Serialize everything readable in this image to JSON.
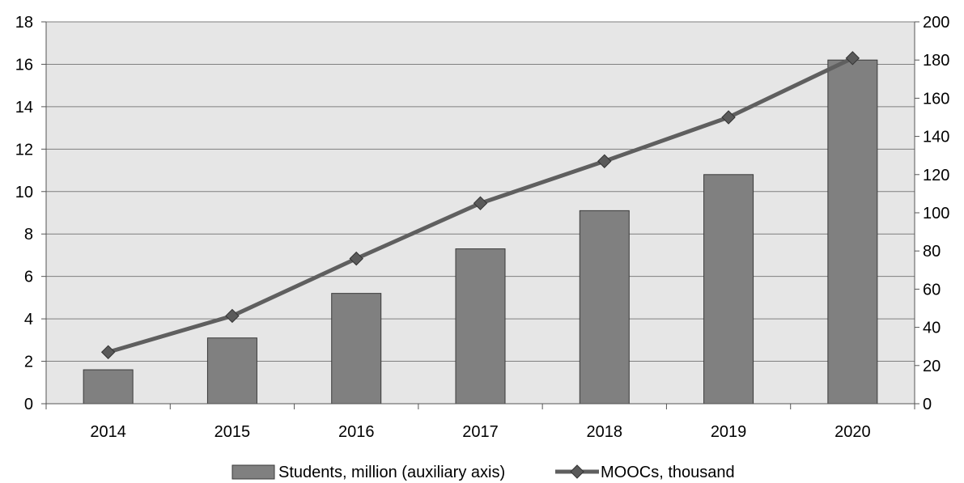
{
  "chart_data": {
    "type": "bar",
    "categories": [
      "2014",
      "2015",
      "2016",
      "2017",
      "2018",
      "2019",
      "2020"
    ],
    "series": [
      {
        "name": "Students, million (auxiliary axis)",
        "type": "bar",
        "axis": "left",
        "values": [
          1.6,
          3.1,
          5.2,
          7.3,
          9.1,
          10.8,
          16.2
        ]
      },
      {
        "name": "MOOCs, thousand",
        "type": "line",
        "axis": "right",
        "marker": "diamond",
        "values": [
          27,
          46,
          76,
          105,
          127,
          150,
          181
        ]
      }
    ],
    "y_left": {
      "lim": [
        0,
        18
      ],
      "ticks": [
        "0",
        "2",
        "4",
        "6",
        "8",
        "10",
        "12",
        "14",
        "16",
        "18"
      ]
    },
    "y_right": {
      "lim": [
        0,
        200
      ],
      "ticks": [
        "0",
        "20",
        "40",
        "60",
        "80",
        "100",
        "120",
        "140",
        "160",
        "180",
        "200"
      ]
    },
    "grid": true,
    "legend_position": "bottom",
    "colors": {
      "bar_fill": "#808080",
      "bar_stroke": "#3a3a3a",
      "line": "#5f5f5f",
      "marker": "#5a5a5a",
      "plot_background": "#e6e6e6",
      "gridline": "#7f7f7f"
    }
  }
}
